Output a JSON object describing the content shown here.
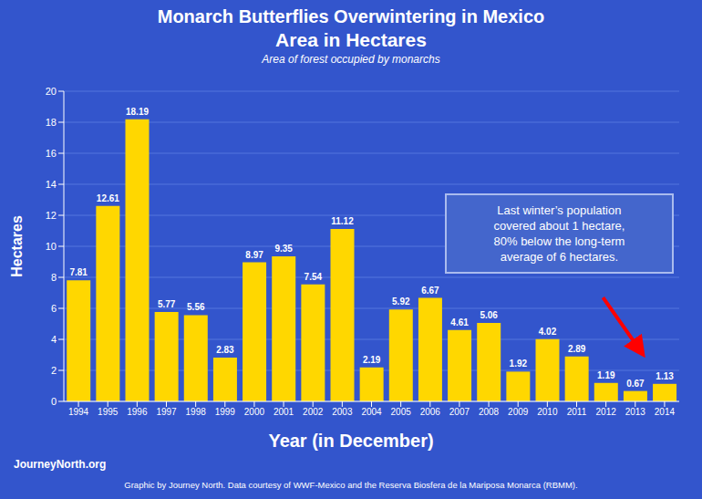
{
  "chart_data": {
    "type": "bar",
    "title": "Monarch Butterflies Overwintering in Mexico\nArea in Hectares",
    "subtitle": "Area of forest occupied by monarchs",
    "x_label": "Year (in December)",
    "y_label": "Hectares",
    "categories": [
      "1994",
      "1995",
      "1996",
      "1997",
      "1998",
      "1999",
      "2000",
      "2001",
      "2002",
      "2003",
      "2004",
      "2005",
      "2006",
      "2007",
      "2008",
      "2009",
      "2010",
      "2011",
      "2012",
      "2013",
      "2014"
    ],
    "values": [
      7.81,
      12.61,
      18.19,
      5.77,
      5.56,
      2.83,
      8.97,
      9.35,
      7.54,
      11.12,
      2.19,
      5.92,
      6.67,
      4.61,
      5.06,
      1.92,
      4.02,
      2.89,
      1.19,
      0.67,
      1.13
    ],
    "color": "#FFD700",
    "ylim": [
      0,
      20
    ],
    "yticks": [
      0,
      2,
      4,
      6,
      8,
      10,
      12,
      14,
      16,
      18,
      20
    ],
    "grid": true,
    "data_labels": true,
    "annotations": [
      "Last winter’s population\ncovered about 1 hectare,\n80% below the long-term\naverage of 6 hectares.",
      "Graphic by Journey North. Data courtesy of WWF-Mexico and the Reserva Biosfera de la Mariposa Monarca (RBMM).",
      "JourneyNorth.org"
    ]
  }
}
